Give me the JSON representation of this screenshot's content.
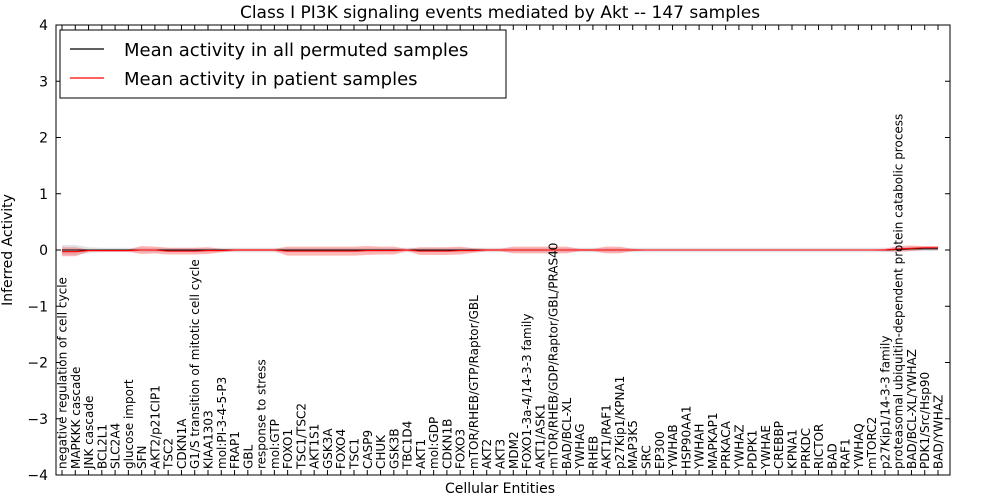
{
  "chart_data": {
    "type": "line",
    "title": "Class I PI3K signaling events mediated by Akt -- 147 samples",
    "xlabel": "Cellular Entities",
    "ylabel": "Inferred Activity",
    "ylim": [
      -4,
      4
    ],
    "yticks": [
      4,
      3,
      2,
      1,
      0,
      -1,
      -2,
      -3,
      -4
    ],
    "legend_position": "top-left",
    "categories": [
      "negative regulation of cell cycle",
      "MAPKKK cascade",
      "JNK cascade",
      "BCL2L1",
      "SLC2A4",
      "glucose import",
      "SFN",
      "AKT2/p21CIP1",
      "TSC2",
      "CDKN1A",
      "G1/S transition of mitotic cell cycle",
      "KIAA1303",
      "mol:PI-3-4-5-P3",
      "FRAP1",
      "GBL",
      "response to stress",
      "mol:GTP",
      "FOXO1",
      "TSC1/TSC2",
      "AKT1S1",
      "GSK3A",
      "FOXO4",
      "TSC1",
      "CASP9",
      "CHUK",
      "GSK3B",
      "TBC1D4",
      "AKT1",
      "mol:GDP",
      "CDKN1B",
      "FOXO3",
      "mTOR/RHEB/GTP/Raptor/GBL",
      "AKT2",
      "AKT3",
      "MDM2",
      "FOXO1-3a-4/14-3-3 family",
      "AKT1/ASK1",
      "mTOR/RHEB/GDP/Raptor/GBL/PRAS40",
      "BAD/BCL-XL",
      "YWHAG",
      "RHEB",
      "AKT1/RAF1",
      "p27Kip1/KPNA1",
      "MAP3K5",
      "SRC",
      "EP300",
      "YWHAB",
      "HSP90AA1",
      "YWHAH",
      "MAPKAP1",
      "PRKACA",
      "YWHAZ",
      "PDPK1",
      "YWHAE",
      "CREBBP",
      "KPNA1",
      "PRKDC",
      "RICTOR",
      "BAD",
      "RAF1",
      "YWHAQ",
      "mTORC2",
      "p27Kip1/14-3-3 family",
      "proteasomal ubiquitin-dependent protein catabolic process",
      "BAD/BCL-XL/YWHAZ",
      "PDK1/Src/Hsp90",
      "BAD/YWHAZ"
    ],
    "series": [
      {
        "name": "Mean activity in all permuted samples",
        "color": "#000000",
        "values": [
          0.0,
          0.0,
          0.0,
          0.0,
          0.0,
          0.0,
          0.0,
          0.0,
          0.0,
          0.0,
          0.0,
          0.0,
          0.0,
          0.0,
          0.0,
          0.0,
          0.0,
          0.0,
          0.0,
          0.0,
          0.0,
          0.0,
          0.0,
          0.0,
          0.0,
          0.0,
          0.0,
          0.0,
          0.0,
          0.0,
          0.0,
          0.0,
          0.0,
          0.0,
          0.0,
          0.0,
          0.0,
          0.0,
          0.0,
          0.0,
          0.0,
          0.0,
          0.0,
          0.0,
          0.0,
          0.0,
          0.0,
          0.0,
          0.0,
          0.0,
          0.0,
          0.0,
          0.0,
          0.0,
          0.0,
          0.0,
          0.0,
          0.0,
          0.0,
          0.0,
          0.0,
          0.0,
          0.0,
          0.01,
          0.02,
          0.02,
          0.02
        ],
        "band": [
          0.09,
          0.09,
          0.05,
          0.04,
          0.04,
          0.04,
          0.04,
          0.04,
          0.04,
          0.04,
          0.04,
          0.04,
          0.04,
          0.04,
          0.04,
          0.04,
          0.04,
          0.04,
          0.04,
          0.04,
          0.04,
          0.04,
          0.04,
          0.04,
          0.04,
          0.04,
          0.04,
          0.04,
          0.04,
          0.04,
          0.04,
          0.04,
          0.04,
          0.04,
          0.04,
          0.04,
          0.04,
          0.04,
          0.04,
          0.04,
          0.04,
          0.04,
          0.04,
          0.04,
          0.04,
          0.04,
          0.04,
          0.04,
          0.04,
          0.04,
          0.04,
          0.04,
          0.04,
          0.04,
          0.04,
          0.04,
          0.04,
          0.04,
          0.04,
          0.04,
          0.04,
          0.04,
          0.04,
          0.04,
          0.04,
          0.04,
          0.04
        ]
      },
      {
        "name": "Mean activity in patient samples",
        "color": "#ff0000",
        "values": [
          -0.03,
          -0.03,
          -0.01,
          -0.01,
          -0.01,
          -0.01,
          0.0,
          0.0,
          -0.02,
          -0.02,
          -0.02,
          -0.01,
          -0.01,
          0.0,
          0.0,
          0.0,
          0.0,
          -0.02,
          -0.02,
          -0.02,
          -0.02,
          -0.02,
          -0.02,
          -0.01,
          -0.01,
          -0.01,
          0.0,
          -0.02,
          -0.02,
          -0.02,
          -0.01,
          -0.01,
          0.0,
          0.0,
          0.0,
          0.0,
          0.0,
          0.0,
          0.0,
          0.0,
          0.0,
          0.0,
          0.0,
          0.0,
          0.0,
          0.0,
          0.0,
          0.0,
          0.0,
          0.0,
          0.0,
          0.0,
          0.0,
          0.0,
          0.0,
          0.0,
          0.0,
          0.0,
          0.0,
          0.0,
          0.0,
          0.0,
          0.0,
          0.02,
          0.03,
          0.04,
          0.04
        ],
        "band": [
          0.08,
          0.08,
          0.02,
          0.02,
          0.02,
          0.02,
          0.07,
          0.06,
          0.06,
          0.06,
          0.06,
          0.06,
          0.03,
          0.02,
          0.02,
          0.02,
          0.02,
          0.08,
          0.08,
          0.08,
          0.08,
          0.08,
          0.08,
          0.08,
          0.07,
          0.07,
          0.02,
          0.07,
          0.07,
          0.07,
          0.07,
          0.04,
          0.02,
          0.02,
          0.06,
          0.06,
          0.06,
          0.06,
          0.06,
          0.02,
          0.02,
          0.06,
          0.06,
          0.02,
          0.01,
          0.01,
          0.01,
          0.01,
          0.01,
          0.01,
          0.01,
          0.01,
          0.01,
          0.01,
          0.01,
          0.01,
          0.01,
          0.01,
          0.01,
          0.01,
          0.01,
          0.01,
          0.02,
          0.05,
          0.05,
          0.03,
          0.03
        ]
      }
    ]
  }
}
